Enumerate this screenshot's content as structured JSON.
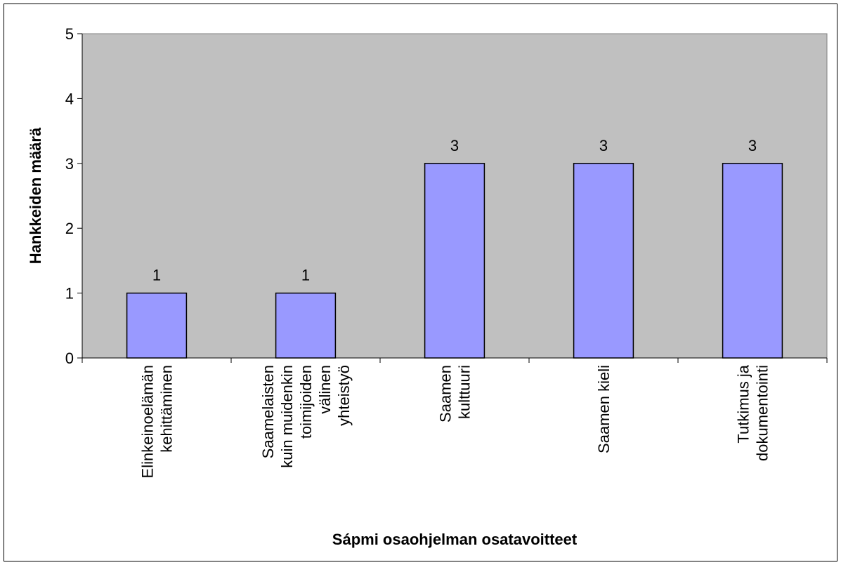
{
  "chart_data": {
    "type": "bar",
    "categories": [
      "Elinkeinoelämän kehittäminen",
      "Saamelaisten kuin muidenkin toimijoiden välinen yhteistyö",
      "Saamen kulttuuri",
      "Saamen kieli",
      "Tutkimus ja dokumentointi"
    ],
    "values": [
      1,
      1,
      3,
      3,
      3
    ],
    "color": "#9999ff",
    "x_label": "Sápmi osaohjelman osatavoitteet",
    "y_label": "Hankkeiden määrä",
    "ylim": [
      0,
      5
    ],
    "yticks": [
      0,
      1,
      2,
      3,
      4,
      5
    ],
    "grid": false
  }
}
